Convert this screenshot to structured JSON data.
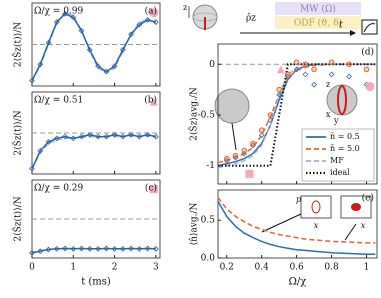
{
  "diagram": {
    "axis": "z",
    "operator": "ρ̂z",
    "pulses": [
      "MW (Ω)",
      "ODF (ϑ, δ)"
    ],
    "time": "t"
  },
  "chart_data": [
    {
      "type": "line",
      "panel": "(a)",
      "annotation": "Ω/χ = 0.99",
      "ylabel": "2⟨Ŝz(t)⟩/N",
      "x": [
        0,
        0.2,
        0.4,
        0.6,
        0.8,
        1.0,
        1.2,
        1.4,
        1.6,
        1.8,
        2.0,
        2.2,
        2.4,
        2.6,
        2.8,
        3.0
      ],
      "xlim": [
        0,
        3.1
      ],
      "xticks": [
        0,
        1,
        2,
        3
      ],
      "xtick_labels": false,
      "ylim": [
        -1.15,
        1.15
      ],
      "reference_line": 0,
      "series": [
        {
          "color": "#a9b3e6",
          "style": "dashed",
          "values": [
            -1,
            -0.6,
            0.0,
            0.6,
            0.9,
            0.8,
            0.4,
            -0.2,
            -0.65,
            -0.8,
            -0.65,
            -0.2,
            0.3,
            0.6,
            0.7,
            0.6
          ]
        },
        {
          "color": "#2a62a8",
          "style": "solid",
          "marker": "diamond",
          "values": [
            -1,
            -0.55,
            0.05,
            0.62,
            0.85,
            0.75,
            0.38,
            -0.15,
            -0.6,
            -0.75,
            -0.6,
            -0.15,
            0.28,
            0.55,
            0.68,
            0.62
          ]
        }
      ],
      "highlights": [
        {
          "x": 2.95,
          "y": 0.88,
          "shape": "circle",
          "color": "#f3a9bb"
        }
      ]
    },
    {
      "type": "line",
      "panel": "(b)",
      "annotation": "Ω/χ = 0.51",
      "ylabel": "2⟨Ŝz(t)⟩/N",
      "x": [
        0,
        0.2,
        0.4,
        0.6,
        0.8,
        1.0,
        1.2,
        1.4,
        1.6,
        1.8,
        2.0,
        2.2,
        2.4,
        2.6,
        2.8,
        3.0
      ],
      "xlim": [
        0,
        3.1
      ],
      "xticks": [
        0,
        1,
        2,
        3
      ],
      "xtick_labels": false,
      "ylim": [
        -1.15,
        1.15
      ],
      "reference_line": 0,
      "series": [
        {
          "color": "#a9b3e6",
          "style": "dashed",
          "values": [
            -1,
            -0.55,
            -0.3,
            -0.2,
            -0.15,
            -0.15,
            -0.12,
            -0.1,
            -0.12,
            -0.1,
            -0.1,
            -0.1,
            -0.08,
            -0.1,
            -0.08,
            -0.1
          ]
        },
        {
          "color": "#2a62a8",
          "style": "solid",
          "marker": "diamond",
          "values": [
            -1,
            -0.5,
            -0.25,
            -0.15,
            -0.1,
            -0.15,
            -0.1,
            -0.05,
            -0.1,
            -0.1,
            -0.05,
            -0.1,
            -0.05,
            -0.1,
            -0.05,
            -0.1
          ]
        }
      ],
      "highlights": [
        {
          "x": 2.95,
          "y": 0.88,
          "shape": "triangle",
          "color": "#f3a9bb"
        }
      ]
    },
    {
      "type": "line",
      "panel": "(c)",
      "annotation": "Ω/χ = 0.29",
      "ylabel": "2⟨Ŝz(t)⟩/N",
      "xlabel": "t (ms)",
      "x": [
        0,
        0.2,
        0.4,
        0.6,
        0.8,
        1.0,
        1.2,
        1.4,
        1.6,
        1.8,
        2.0,
        2.2,
        2.4,
        2.6,
        2.8,
        3.0
      ],
      "xlim": [
        0,
        3.1
      ],
      "xticks": [
        0,
        1,
        2,
        3
      ],
      "xtick_labels": true,
      "ylim": [
        -1.15,
        1.15
      ],
      "reference_line": 0,
      "series": [
        {
          "color": "#a9b3e6",
          "style": "dashed",
          "values": [
            -1,
            -0.93,
            -0.9,
            -0.88,
            -0.88,
            -0.88,
            -0.88,
            -0.88,
            -0.88,
            -0.88,
            -0.88,
            -0.88,
            -0.88,
            -0.88,
            -0.88,
            -0.88
          ]
        },
        {
          "color": "#2a62a8",
          "style": "solid",
          "marker": "diamond",
          "values": [
            -1,
            -0.95,
            -0.9,
            -0.88,
            -0.87,
            -0.88,
            -0.87,
            -0.88,
            -0.88,
            -0.87,
            -0.88,
            -0.88,
            -0.87,
            -0.88,
            -0.87,
            -0.88
          ]
        }
      ],
      "highlights": [
        {
          "x": 2.95,
          "y": 0.88,
          "shape": "square",
          "color": "#f3a9bb"
        }
      ]
    },
    {
      "type": "line",
      "panel": "(d)",
      "ylabel": "2⟨Ŝz⟩avg./N",
      "legend": "lower right",
      "sphere_axes": [
        "z",
        "x",
        "y"
      ],
      "x": [
        0.15,
        0.2,
        0.25,
        0.3,
        0.35,
        0.4,
        0.45,
        0.5,
        0.55,
        0.6,
        0.65,
        0.7,
        0.8,
        0.9,
        1.0,
        1.05
      ],
      "xlim": [
        0.15,
        1.06
      ],
      "xticks": [
        0.2,
        0.4,
        0.6,
        0.8,
        1
      ],
      "xtick_labels": false,
      "ylim": [
        -1.18,
        0.2
      ],
      "yticks": [
        -1,
        -0.5,
        0
      ],
      "reference_line": 0,
      "series": [
        {
          "name": "n̄ = 0.5",
          "color": "#2a6fb0",
          "style": "solid",
          "values": [
            -1.0,
            -0.98,
            -0.96,
            -0.93,
            -0.88,
            -0.78,
            -0.6,
            -0.35,
            -0.15,
            -0.05,
            -0.02,
            0.0,
            0.0,
            0.0,
            0.0,
            0.0
          ]
        },
        {
          "name": "n̄ = 5.0",
          "color": "#e0662a",
          "style": "dashed",
          "values": [
            -0.97,
            -0.95,
            -0.92,
            -0.88,
            -0.82,
            -0.7,
            -0.52,
            -0.3,
            -0.14,
            -0.06,
            -0.03,
            -0.01,
            0,
            0,
            0,
            0
          ]
        },
        {
          "name": "MF",
          "color": "#b7a6e0",
          "style": "dashed",
          "values": [
            -1.02,
            -1.0,
            -0.98,
            -0.95,
            -0.9,
            -0.8,
            -0.6,
            -0.3,
            -0.1,
            -0.04,
            -0.02,
            0,
            0,
            0,
            0,
            0
          ]
        },
        {
          "name": "ideal",
          "color": "#111111",
          "style": "dotted",
          "values": [
            -1,
            -1,
            -1,
            -1,
            -1,
            -1,
            -1,
            -0.5,
            0,
            0,
            0,
            0,
            0,
            0,
            0,
            0
          ]
        },
        {
          "color": "#2a6fb0",
          "marker": "diamond",
          "x": [
            0.2,
            0.25,
            0.3,
            0.35,
            0.4,
            0.45,
            0.5,
            0.55,
            0.6,
            0.65,
            0.7,
            0.8,
            0.9,
            1.0
          ],
          "values": [
            -0.95,
            -0.92,
            -0.88,
            -0.8,
            -0.7,
            -0.55,
            -0.3,
            -0.12,
            -0.05,
            -0.1,
            -0.2,
            -0.1,
            -0.12,
            -0.2
          ]
        },
        {
          "color": "#e0662a",
          "marker": "circle",
          "x": [
            0.2,
            0.25,
            0.3,
            0.35,
            0.4,
            0.45,
            0.5,
            0.55,
            0.6,
            0.65,
            0.7,
            0.8,
            0.9,
            1.0
          ],
          "values": [
            -0.93,
            -0.9,
            -0.85,
            -0.78,
            -0.65,
            -0.5,
            -0.25,
            -0.1,
            0.02,
            0.0,
            -0.05,
            0.02,
            0.0,
            -0.05
          ]
        }
      ],
      "highlights": [
        {
          "x": 0.33,
          "y": -1.08,
          "shape": "square",
          "color": "#f3a9bb"
        },
        {
          "x": 0.51,
          "y": -0.05,
          "shape": "triangle",
          "color": "#f3a9bb"
        },
        {
          "x": 1.02,
          "y": -0.22,
          "shape": "circle",
          "color": "#f3a9bb"
        }
      ]
    },
    {
      "type": "line",
      "panel": "(e)",
      "ylabel": "⟨n̂⟩avg./N",
      "xlabel": "Ω/χ",
      "inset_labels": [
        "p",
        "x",
        "x"
      ],
      "x": [
        0.15,
        0.2,
        0.25,
        0.3,
        0.35,
        0.4,
        0.45,
        0.5,
        0.55,
        0.6,
        0.65,
        0.7,
        0.8,
        0.9,
        1.0,
        1.05
      ],
      "xlim": [
        0.15,
        1.06
      ],
      "xticks": [
        0.2,
        0.4,
        0.6,
        0.8,
        1
      ],
      "xtick_labels": true,
      "ylim": [
        0,
        0.9
      ],
      "yticks": [
        {
          "value": 0,
          "label": "0.0"
        },
        0.5
      ],
      "series": [
        {
          "color": "#2a6fb0",
          "style": "solid",
          "values": [
            0.75,
            0.55,
            0.42,
            0.33,
            0.27,
            0.22,
            0.18,
            0.15,
            0.13,
            0.11,
            0.1,
            0.09,
            0.07,
            0.06,
            0.05,
            0.05
          ]
        },
        {
          "color": "#e0662a",
          "style": "dashed",
          "values": [
            0.8,
            0.65,
            0.55,
            0.48,
            0.42,
            0.38,
            0.34,
            0.31,
            0.29,
            0.27,
            0.25,
            0.24,
            0.22,
            0.21,
            0.2,
            0.2
          ]
        }
      ]
    }
  ]
}
